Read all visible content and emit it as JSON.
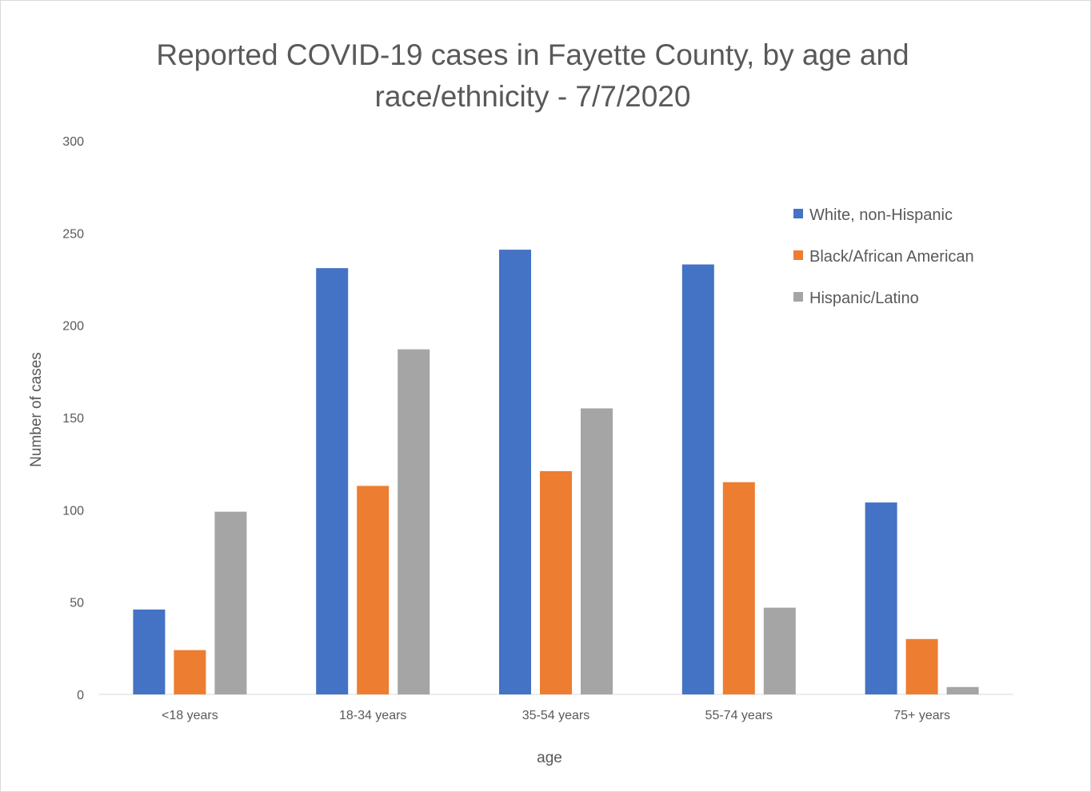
{
  "chart_data": {
    "type": "bar",
    "title_line1": "Reported COVID-19 cases in Fayette County, by age and",
    "title_line2": "race/ethnicity - 7/7/2020",
    "xlabel": "age",
    "ylabel": "Number of cases",
    "categories": [
      "<18 years",
      "18-34 years",
      "35-54 years",
      "55-74 years",
      "75+ years"
    ],
    "series": [
      {
        "name": "White, non-Hispanic",
        "color": "#4472c4",
        "values": [
          46,
          231,
          241,
          233,
          104
        ]
      },
      {
        "name": "Black/African American",
        "color": "#ed7d31",
        "values": [
          24,
          113,
          121,
          115,
          30
        ]
      },
      {
        "name": "Hispanic/Latino",
        "color": "#a5a5a5",
        "values": [
          99,
          187,
          155,
          47,
          4
        ]
      }
    ],
    "ylim": [
      0,
      300
    ],
    "yticks": [
      0,
      50,
      100,
      150,
      200,
      250,
      300
    ],
    "grid": false,
    "legend_position": "top-right"
  }
}
